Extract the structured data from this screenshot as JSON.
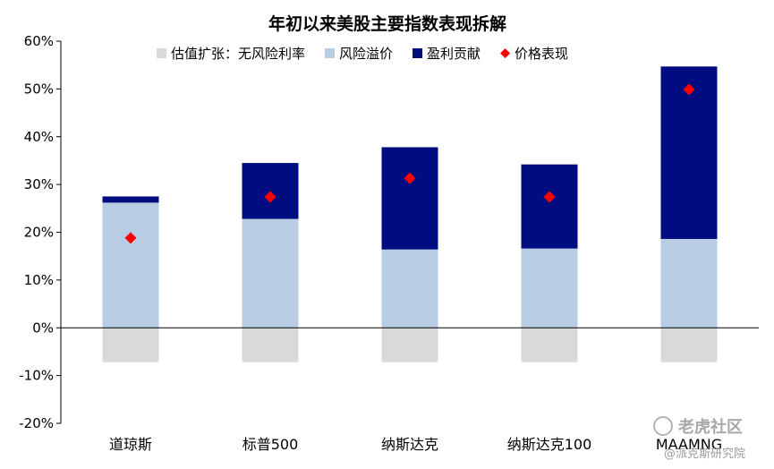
{
  "chart_data": {
    "type": "bar",
    "stacked": true,
    "title": "年初以来美股主要指数表现拆解",
    "categories": [
      "道琼斯",
      "标普500",
      "纳斯达克",
      "纳斯达克100",
      "MAAMNG"
    ],
    "series": [
      {
        "name": "估值扩张：无风险利率",
        "kind": "bar",
        "color": "#d9d9d9",
        "values": [
          -7.2,
          -7.2,
          -7.2,
          -7.2,
          -7.2
        ]
      },
      {
        "name": "风险溢价",
        "kind": "bar",
        "color": "#b8cce4",
        "values": [
          26.2,
          22.8,
          16.4,
          16.6,
          18.6
        ]
      },
      {
        "name": "盈利贡献",
        "kind": "bar",
        "color": "#000d80",
        "values": [
          1.3,
          11.7,
          21.4,
          17.6,
          36.1
        ]
      },
      {
        "name": "价格表现",
        "kind": "marker",
        "color": "#ff0000",
        "values": [
          18.8,
          27.4,
          31.3,
          27.4,
          49.9
        ]
      }
    ],
    "ylim": [
      -20,
      60
    ],
    "yticks": [
      -20,
      -10,
      0,
      10,
      20,
      30,
      40,
      50,
      60
    ],
    "ytick_labels": [
      "-20%",
      "-10%",
      "0%",
      "10%",
      "20%",
      "30%",
      "40%",
      "50%",
      "60%"
    ],
    "legend_position": "top"
  },
  "watermark": {
    "brand": "老虎社区",
    "author": "@派克斯研究院"
  }
}
